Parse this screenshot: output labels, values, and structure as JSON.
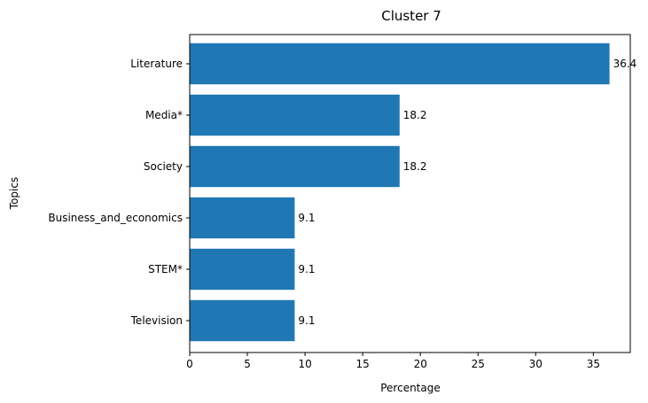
{
  "chart_data": {
    "type": "bar",
    "orientation": "horizontal",
    "title": "Cluster 7",
    "xlabel": "Percentage",
    "ylabel": "Topics",
    "categories": [
      "Literature",
      "Media*",
      "Society",
      "Business_and_economics",
      "STEM*",
      "Television"
    ],
    "values": [
      36.4,
      18.2,
      18.2,
      9.1,
      9.1,
      9.1
    ],
    "data_labels": [
      "36.4",
      "18.2",
      "18.2",
      "9.1",
      "9.1",
      "9.1"
    ],
    "xlim": [
      0,
      38.2
    ],
    "xticks": [
      0,
      5,
      10,
      15,
      20,
      25,
      30,
      35
    ],
    "grid": false,
    "bar_color": "#1f77b4"
  }
}
